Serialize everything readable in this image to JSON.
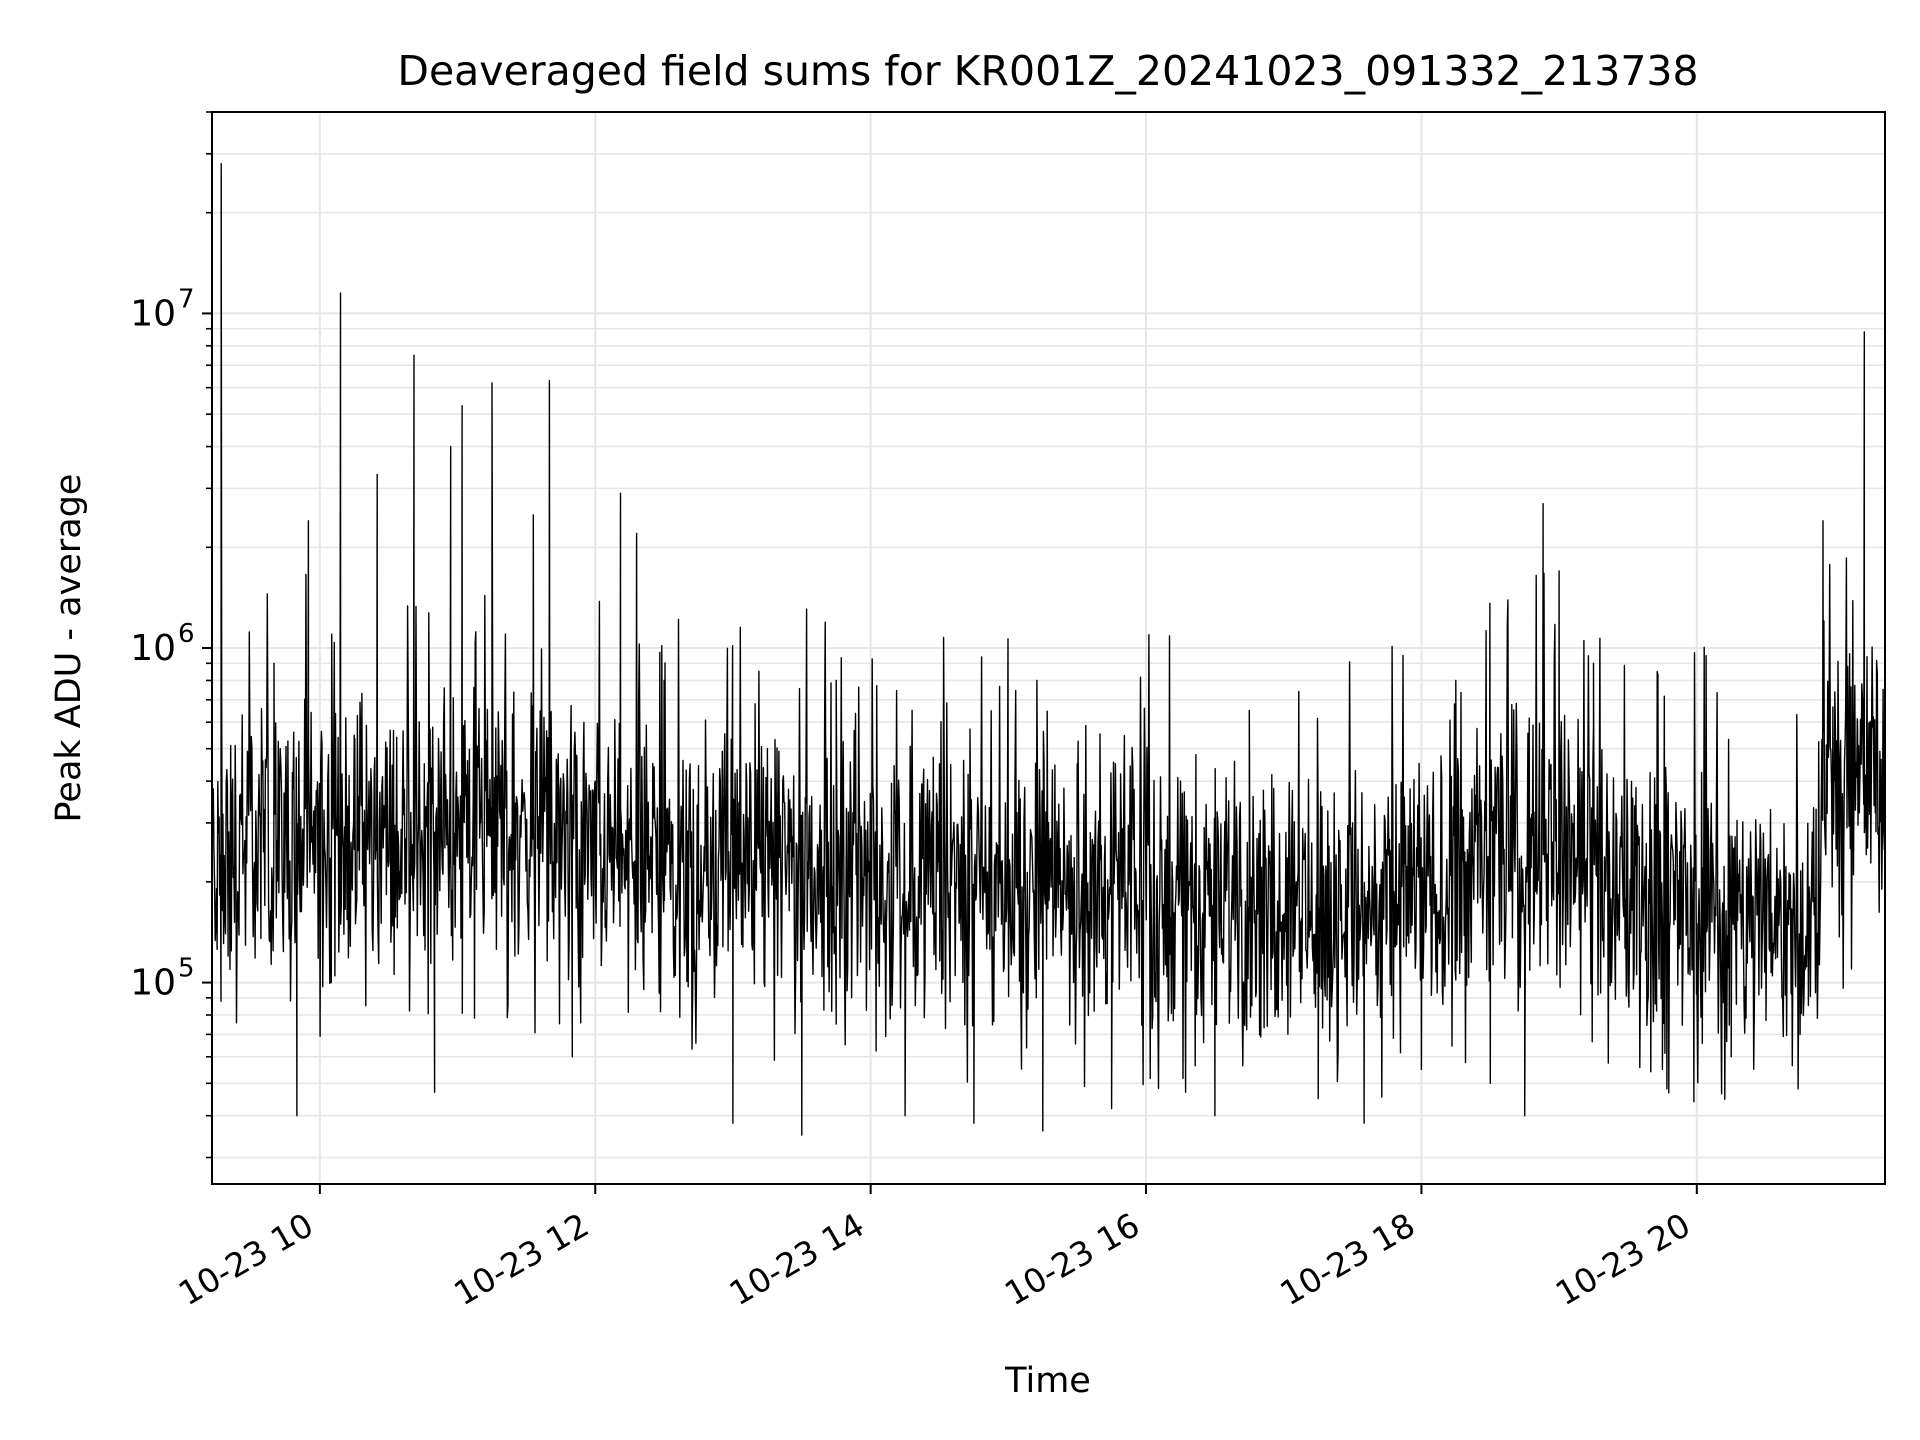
{
  "chart_data": {
    "type": "line",
    "title": "Deaveraged field sums for KR001Z_20241023_091332_213738",
    "xlabel": "Time",
    "ylabel": "Peak ADU - average",
    "x_type": "datetime",
    "y_scale": "log",
    "xlim": [
      "2024-10-23 09:13",
      "2024-10-23 21:22"
    ],
    "ylim": [
      25000,
      40000000
    ],
    "x_ticks": [
      {
        "time": "2024-10-23 10:00",
        "label": "10-23 10"
      },
      {
        "time": "2024-10-23 12:00",
        "label": "10-23 12"
      },
      {
        "time": "2024-10-23 14:00",
        "label": "10-23 14"
      },
      {
        "time": "2024-10-23 16:00",
        "label": "10-23 16"
      },
      {
        "time": "2024-10-23 18:00",
        "label": "10-23 18"
      },
      {
        "time": "2024-10-23 20:00",
        "label": "10-23 20"
      }
    ],
    "y_ticks": [
      {
        "value": 100000,
        "base": "10",
        "exp": "5"
      },
      {
        "value": 1000000,
        "base": "10",
        "exp": "6"
      },
      {
        "value": 10000000,
        "base": "10",
        "exp": "7"
      }
    ],
    "grid": true,
    "legend": "none",
    "line_color": "#000000",
    "grid_color": "#e6e6e6",
    "series": [
      {
        "points": [
          [
            "2024-10-23 09:13",
            90000
          ],
          [
            "2024-10-23 09:17",
            28000000
          ],
          [
            "2024-10-23 09:20",
            120000
          ],
          [
            "2024-10-23 09:30",
            400000
          ],
          [
            "2024-10-23 09:40",
            900000
          ],
          [
            "2024-10-23 09:50",
            40000
          ],
          [
            "2024-10-23 09:55",
            2400000
          ],
          [
            "2024-10-23 10:05",
            100000
          ],
          [
            "2024-10-23 10:09",
            11500000
          ],
          [
            "2024-10-23 10:15",
            250000
          ],
          [
            "2024-10-23 10:25",
            3300000
          ],
          [
            "2024-10-23 10:35",
            180000
          ],
          [
            "2024-10-23 10:41",
            7500000
          ],
          [
            "2024-10-23 10:50",
            47000
          ],
          [
            "2024-10-23 10:57",
            4000000
          ],
          [
            "2024-10-23 11:02",
            5300000
          ],
          [
            "2024-10-23 11:10",
            300000
          ],
          [
            "2024-10-23 11:15",
            6200000
          ],
          [
            "2024-10-23 11:25",
            120000
          ],
          [
            "2024-10-23 11:33",
            2500000
          ],
          [
            "2024-10-23 11:40",
            6300000
          ],
          [
            "2024-10-23 11:50",
            60000
          ],
          [
            "2024-10-23 12:00",
            400000
          ],
          [
            "2024-10-23 12:11",
            2900000
          ],
          [
            "2024-10-23 12:18",
            2200000
          ],
          [
            "2024-10-23 12:30",
            800000
          ],
          [
            "2024-10-23 12:45",
            200000
          ],
          [
            "2024-10-23 13:00",
            38000
          ],
          [
            "2024-10-23 13:15",
            500000
          ],
          [
            "2024-10-23 13:30",
            35000
          ],
          [
            "2024-10-23 13:45",
            800000
          ],
          [
            "2024-10-23 14:00",
            200000
          ],
          [
            "2024-10-23 14:15",
            40000
          ],
          [
            "2024-10-23 14:30",
            450000
          ],
          [
            "2024-10-23 14:45",
            38000
          ],
          [
            "2024-10-23 15:00",
            180000
          ],
          [
            "2024-10-23 15:15",
            36000
          ],
          [
            "2024-10-23 15:30",
            450000
          ],
          [
            "2024-10-23 15:45",
            42000
          ],
          [
            "2024-10-23 16:00",
            180000
          ],
          [
            "2024-10-23 16:15",
            400000
          ],
          [
            "2024-10-23 16:30",
            40000
          ],
          [
            "2024-10-23 16:45",
            650000
          ],
          [
            "2024-10-23 17:00",
            160000
          ],
          [
            "2024-10-23 17:15",
            45000
          ],
          [
            "2024-10-23 17:30",
            300000
          ],
          [
            "2024-10-23 17:35",
            38000
          ],
          [
            "2024-10-23 17:45",
            250000
          ],
          [
            "2024-10-23 18:00",
            55000
          ],
          [
            "2024-10-23 18:15",
            800000
          ],
          [
            "2024-10-23 18:30",
            50000
          ],
          [
            "2024-10-23 18:45",
            40000
          ],
          [
            "2024-10-23 18:53",
            2700000
          ],
          [
            "2024-10-23 19:00",
            1700000
          ],
          [
            "2024-10-23 19:15",
            900000
          ],
          [
            "2024-10-23 19:30",
            100000
          ],
          [
            "2024-10-23 19:45",
            55000
          ],
          [
            "2024-10-23 20:00",
            150000
          ],
          [
            "2024-10-23 20:15",
            60000
          ],
          [
            "2024-10-23 20:30",
            200000
          ],
          [
            "2024-10-23 20:45",
            70000
          ],
          [
            "2024-10-23 20:52",
            120000
          ],
          [
            "2024-10-23 20:55",
            2400000
          ],
          [
            "2024-10-23 21:00",
            400000
          ],
          [
            "2024-10-23 21:10",
            600000
          ],
          [
            "2024-10-23 21:13",
            8800000
          ],
          [
            "2024-10-23 21:18",
            400000
          ],
          [
            "2024-10-23 21:22",
            300000
          ]
        ]
      }
    ]
  }
}
